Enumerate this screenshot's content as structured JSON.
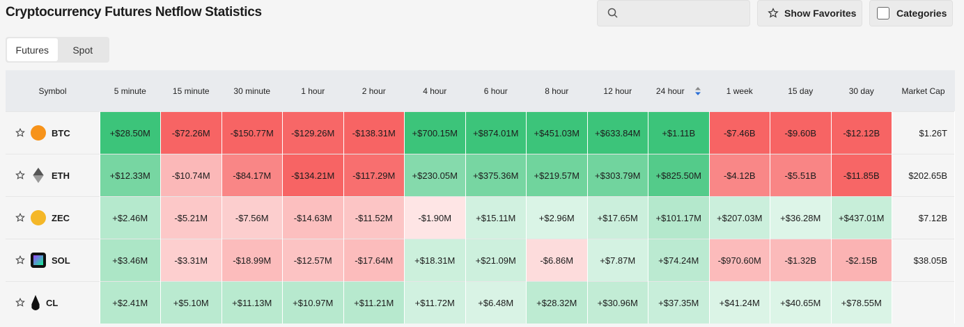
{
  "header": {
    "title": "Cryptocurrency Futures Netflow Statistics",
    "favorites_button": "Show Favorites",
    "categories_button": "Categories"
  },
  "tabs": [
    "Futures",
    "Spot"
  ],
  "table": {
    "columns": [
      "Symbol",
      "5 minute",
      "15 minute",
      "30 minute",
      "1 hour",
      "2 hour",
      "4 hour",
      "6 hour",
      "8 hour",
      "12 hour",
      "24 hour",
      "1 week",
      "15 day",
      "30 day",
      "Market Cap"
    ],
    "rows": [
      {
        "symbol": "BTC",
        "values": [
          "+$28.50M",
          "-$72.26M",
          "-$150.77M",
          "-$129.26M",
          "-$138.31M",
          "+$700.15M",
          "+$874.01M",
          "+$451.03M",
          "+$633.84M",
          "+$1.11B",
          "-$7.46B",
          "-$9.60B",
          "-$12.12B"
        ],
        "market_cap": "$1.26T"
      },
      {
        "symbol": "ETH",
        "values": [
          "+$12.33M",
          "-$10.74M",
          "-$84.17M",
          "-$134.21M",
          "-$117.29M",
          "+$230.05M",
          "+$375.36M",
          "+$219.57M",
          "+$303.79M",
          "+$825.50M",
          "-$4.12B",
          "-$5.51B",
          "-$11.85B"
        ],
        "market_cap": "$202.65B"
      },
      {
        "symbol": "ZEC",
        "values": [
          "+$2.46M",
          "-$5.21M",
          "-$7.56M",
          "-$14.63M",
          "-$11.52M",
          "-$1.90M",
          "+$15.11M",
          "+$2.96M",
          "+$17.65M",
          "+$101.17M",
          "+$207.03M",
          "+$36.28M",
          "+$437.01M"
        ],
        "market_cap": "$7.12B"
      },
      {
        "symbol": "SOL",
        "values": [
          "+$3.46M",
          "-$3.31M",
          "-$18.99M",
          "-$12.57M",
          "-$17.64M",
          "+$18.31M",
          "+$21.09M",
          "-$6.86M",
          "+$7.87M",
          "+$74.24M",
          "-$970.60M",
          "-$1.32B",
          "-$2.15B"
        ],
        "market_cap": "$38.05B"
      },
      {
        "symbol": "CL",
        "values": [
          "+$2.41M",
          "+$5.10M",
          "+$11.13M",
          "+$10.97M",
          "+$11.21M",
          "+$11.72M",
          "+$6.48M",
          "+$28.32M",
          "+$30.96M",
          "+$37.35M",
          "+$41.24M",
          "+$40.65M",
          "+$78.55M"
        ]
      }
    ]
  }
}
